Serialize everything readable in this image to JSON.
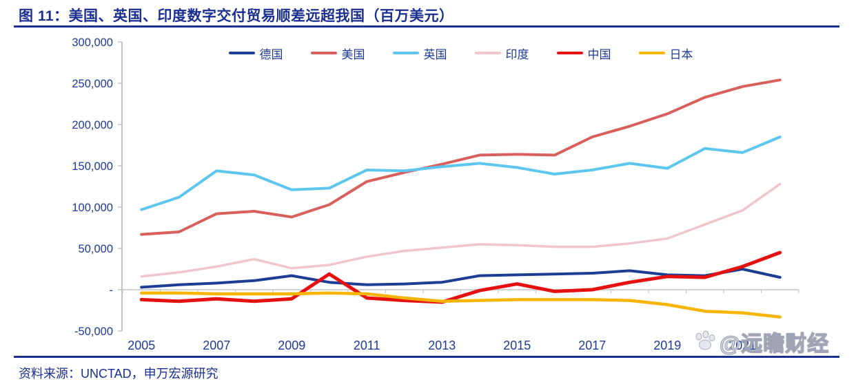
{
  "title": "图 11：美国、英国、印度数字交付贸易顺差远超我国（百万美元）",
  "footer": {
    "source_note": "资料来源：UNCTAD，申万宏源研究"
  },
  "watermark": {
    "text": "@远瞻财经",
    "icon": "paw-icon"
  },
  "colors": {
    "accent_blue": "#1a2f8f",
    "legend_text": "#1e3a96",
    "axis_gray": "#c4c4c4"
  },
  "chart_data": {
    "type": "line",
    "title": "图 11：美国、英国、印度数字交付贸易顺差远超我国（百万美元）",
    "unit": "百万美元",
    "x": [
      2005,
      2006,
      2007,
      2008,
      2009,
      2010,
      2011,
      2012,
      2013,
      2014,
      2015,
      2016,
      2017,
      2018,
      2019,
      2020,
      2021,
      2022
    ],
    "x_axis_labels": [
      "2005",
      "2007",
      "2009",
      "2011",
      "2013",
      "2015",
      "2017",
      "2019",
      "2021"
    ],
    "ylim": [
      -50000,
      300000
    ],
    "y_tick_step": 50000,
    "y_tick_values": [
      300000,
      250000,
      200000,
      150000,
      100000,
      50000,
      0,
      -50000
    ],
    "y_tick_labels": [
      "300,000",
      "250,000",
      "200,000",
      "150,000",
      "100,000",
      "50,000",
      "-",
      "-50,000"
    ],
    "grid": "zero baseline only, light gray axes",
    "legend_position": "top-center",
    "series": [
      {
        "id": "germany",
        "name": "德国",
        "color": "#1c3d94",
        "width": 4,
        "values": [
          3000,
          6000,
          8000,
          11000,
          17000,
          9000,
          6000,
          7000,
          9000,
          17000,
          18000,
          19000,
          20000,
          23000,
          18000,
          17000,
          25000,
          15000
        ]
      },
      {
        "id": "usa",
        "name": "美国",
        "color": "#d95f5c",
        "width": 4,
        "values": [
          67000,
          70000,
          92000,
          95000,
          88000,
          103000,
          131000,
          142000,
          152000,
          163000,
          164000,
          163000,
          185000,
          198000,
          213000,
          233000,
          246000,
          254000
        ]
      },
      {
        "id": "uk",
        "name": "英国",
        "color": "#5cc6ef",
        "width": 4,
        "values": [
          97000,
          112000,
          144000,
          139000,
          121000,
          123000,
          145000,
          144000,
          149000,
          153000,
          148000,
          140000,
          145000,
          153000,
          147000,
          171000,
          166000,
          185000
        ]
      },
      {
        "id": "india",
        "name": "印度",
        "color": "#f0c6cc",
        "width": 3.5,
        "values": [
          16000,
          21000,
          28000,
          37000,
          26000,
          30000,
          40000,
          47000,
          51000,
          55000,
          54000,
          52000,
          52000,
          56000,
          62000,
          79000,
          96000,
          128000
        ]
      },
      {
        "id": "china",
        "name": "中国",
        "color": "#e51010",
        "width": 5,
        "values": [
          -12000,
          -14000,
          -11000,
          -14000,
          -11000,
          19000,
          -10000,
          -13000,
          -15000,
          -1000,
          7000,
          -2000,
          0,
          9000,
          16000,
          15000,
          28000,
          45000
        ]
      },
      {
        "id": "japan",
        "name": "日本",
        "color": "#f8b500",
        "width": 4.5,
        "values": [
          -4000,
          -4000,
          -5000,
          -5000,
          -5000,
          -4000,
          -5000,
          -10000,
          -14000,
          -13000,
          -12000,
          -12000,
          -12000,
          -13000,
          -18000,
          -26000,
          -28000,
          -33000
        ]
      }
    ]
  }
}
